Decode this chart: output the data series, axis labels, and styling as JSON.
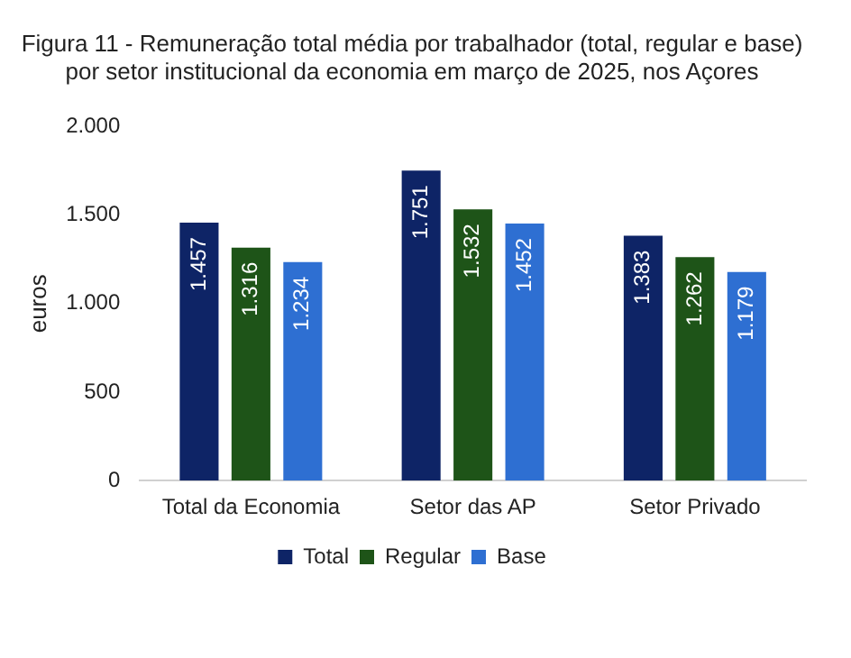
{
  "chart_data": {
    "type": "bar",
    "title": "Figura 11 - Remuneração total média por trabalhador (total, regular e base)\npor setor institucional da economia em março de 2025, nos Açores",
    "ylabel": "euros",
    "categories": [
      "Total da Economia",
      "Setor das AP",
      "Setor Privado"
    ],
    "series": [
      {
        "name": "Total",
        "color": "#0e2466",
        "values": [
          1457,
          1751,
          1383
        ],
        "value_labels": [
          "1.457",
          "1.751",
          "1.383"
        ]
      },
      {
        "name": "Regular",
        "color": "#1e5418",
        "values": [
          1316,
          1532,
          1262
        ],
        "value_labels": [
          "1.316",
          "1.532",
          "1.262"
        ]
      },
      {
        "name": "Base",
        "color": "#2e6fd2",
        "values": [
          1234,
          1452,
          1179
        ],
        "value_labels": [
          "1.234",
          "1.452",
          "1.179"
        ]
      }
    ],
    "ylim": [
      0,
      2000
    ],
    "yticks": [
      0,
      500,
      {
        "value": 1000,
        "label": "1.000"
      },
      {
        "value": 1500,
        "label": "1.500"
      },
      {
        "value": 2000,
        "label": "2.000"
      }
    ],
    "grid": false,
    "legend": "bottom"
  }
}
